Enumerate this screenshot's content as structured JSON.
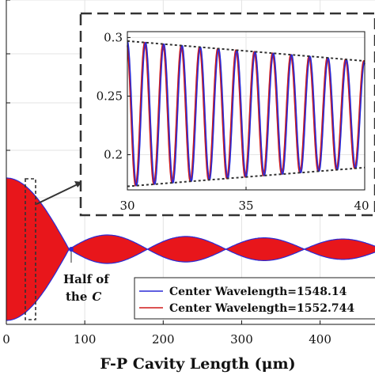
{
  "chart_data": [
    {
      "type": "line",
      "xlabel": "F-P Cavity Length (μm)",
      "ylabel": "",
      "xlim": [
        0,
        470
      ],
      "xticks": [
        0,
        100,
        200,
        300,
        400
      ],
      "ylim": [
        0,
        1
      ],
      "grid": true,
      "series": [
        {
          "name": "Center Wavelength=1548.14",
          "color": "#2a2ad6",
          "envelope": "beat",
          "fill": "#e8161b"
        },
        {
          "name": "Center Wavelength=1552.744",
          "color": "#d11a1a",
          "envelope": "beat",
          "fill": "#e8161b"
        }
      ],
      "legend": {
        "placement": "bottom-right",
        "entries": [
          "Center Wavelength=1548.14",
          "Center Wavelength=1552.744"
        ]
      },
      "annotation": {
        "text": [
          "Half of",
          "the"
        ],
        "symbol": "C",
        "at_x": 80
      },
      "highlight_box": {
        "x": [
          25,
          35
        ]
      }
    },
    {
      "type": "line",
      "inset": true,
      "xlim": [
        30,
        40
      ],
      "ylim": [
        0.17,
        0.305
      ],
      "xticks": [
        30,
        35,
        40
      ],
      "yticks": [
        0.2,
        0.25,
        0.3
      ],
      "cycles": 13,
      "upper_envelope": [
        [
          30,
          0.297
        ],
        [
          40,
          0.28
        ]
      ],
      "lower_envelope": [
        [
          30,
          0.173
        ],
        [
          40,
          0.189
        ]
      ],
      "series": [
        {
          "name": "Center Wavelength=1548.14",
          "color": "#2a2ad6"
        },
        {
          "name": "Center Wavelength=1552.744",
          "color": "#d11a1a"
        }
      ]
    }
  ]
}
